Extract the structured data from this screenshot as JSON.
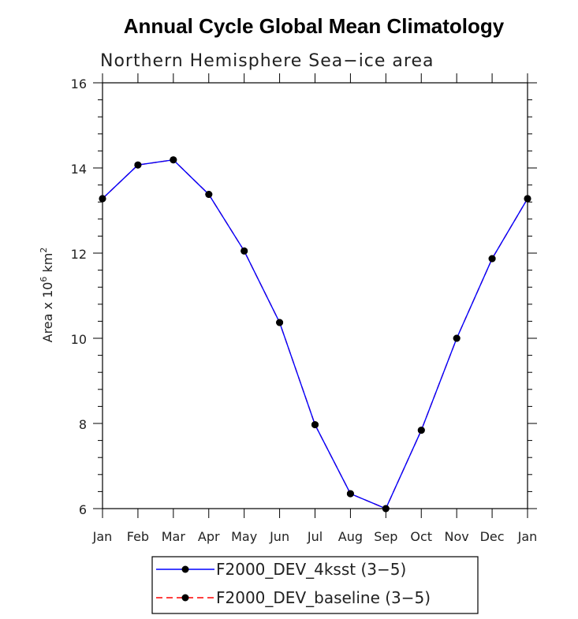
{
  "chart_data": {
    "type": "line",
    "title": "Annual Cycle Global Mean Climatology",
    "subtitle": "Northern Hemisphere Sea−ice area",
    "ylabel_parts": {
      "pre": "Area x 10",
      "exp1": "6",
      "mid": " km",
      "exp2": "2"
    },
    "ylim": [
      6,
      16
    ],
    "yticks": [
      6,
      8,
      10,
      12,
      14,
      16
    ],
    "categories": [
      "Jan",
      "Feb",
      "Mar",
      "Apr",
      "May",
      "Jun",
      "Jul",
      "Aug",
      "Sep",
      "Oct",
      "Nov",
      "Dec",
      "Jan"
    ],
    "series": [
      {
        "name": "F2000_DEV_4ksst (3−5)",
        "color": "#0000ff",
        "dash": "solid",
        "values": [
          13.28,
          14.07,
          14.19,
          13.38,
          12.05,
          10.37,
          7.97,
          6.35,
          6.0,
          7.84,
          10.0,
          11.87,
          13.28
        ]
      },
      {
        "name": "F2000_DEV_baseline (3−5)",
        "color": "#ff0000",
        "dash": "dashed",
        "values": [
          13.28,
          14.07,
          14.19,
          13.38,
          12.05,
          10.37,
          7.97,
          6.35,
          6.0,
          7.84,
          10.0,
          11.87,
          13.28
        ]
      }
    ],
    "marker_color": "#000000",
    "legend_position": "bottom-center"
  }
}
